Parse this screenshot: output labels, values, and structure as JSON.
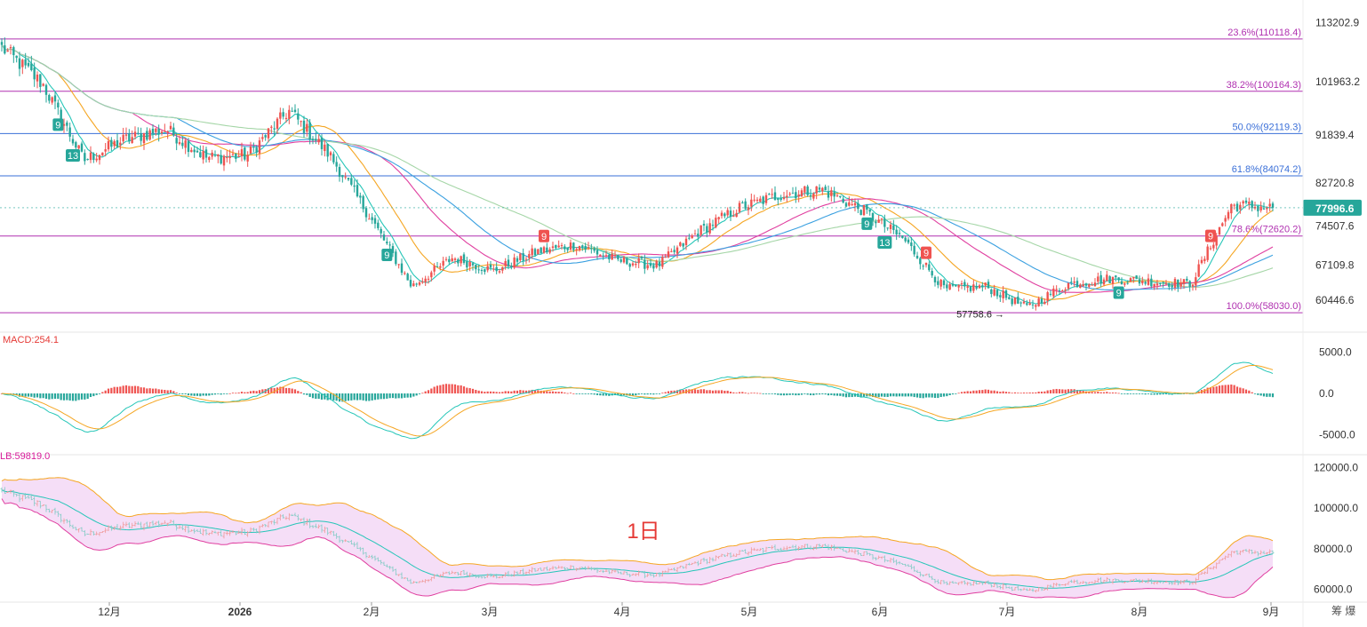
{
  "colors": {
    "up": "#ef5350",
    "down": "#26a69a",
    "fib_purple": "#b030b0",
    "fib_blue": "#3a6fd8",
    "ma_fast": "#26c6b8",
    "ma_mid": "#f5a623",
    "ma_pink": "#e040a0",
    "ma_blue": "#3aa0e0",
    "ma_green": "#a5d6a7",
    "price_tag": "#26a69a",
    "boll_fill": "#f3d6f5"
  },
  "x_axis": {
    "labels": [
      "12月",
      "2026",
      "2月",
      "3月",
      "4月",
      "5月",
      "6月",
      "7月",
      "8月",
      "9月"
    ],
    "corner": "筹 爆"
  },
  "price_axis": {
    "ticks": [
      "113202.9",
      "101963.2",
      "91839.4",
      "82720.8",
      "74507.6",
      "67109.8",
      "60446.6"
    ],
    "current_price": "77996.6"
  },
  "fib_levels": [
    {
      "label": "23.6%(110118.4)",
      "value": 110118.4,
      "color": "purple"
    },
    {
      "label": "38.2%(100164.3)",
      "value": 100164.3,
      "color": "purple"
    },
    {
      "label": "50.0%(92119.3)",
      "value": 92119.3,
      "color": "blue"
    },
    {
      "label": "61.8%(84074.2)",
      "value": 84074.2,
      "color": "blue"
    },
    {
      "label": "78.6%(72620.2)",
      "value": 72620.2,
      "color": "purple"
    },
    {
      "label": "100.0%(58030.0)",
      "value": 58030.0,
      "color": "purple"
    }
  ],
  "low_marker": "57758.6 →",
  "td_markers": [
    {
      "label": "9",
      "kind": "down",
      "date_index": 19
    },
    {
      "label": "13",
      "kind": "down",
      "date_index": 24
    },
    {
      "label": "9",
      "kind": "down",
      "date_index": 130
    },
    {
      "label": "9",
      "kind": "up",
      "date_index": 183
    },
    {
      "label": "9",
      "kind": "down",
      "date_index": 292
    },
    {
      "label": "13",
      "kind": "down",
      "date_index": 298
    },
    {
      "label": "9",
      "kind": "up",
      "date_index": 312
    },
    {
      "label": "9",
      "kind": "down",
      "date_index": 377
    },
    {
      "label": "9",
      "kind": "up",
      "date_index": 408
    }
  ],
  "macd_panel": {
    "label": "MACD:254.1",
    "ticks": [
      "5000.0",
      "0.0",
      "-5000.0"
    ]
  },
  "boll_panel": {
    "label": "LB:59819.0",
    "ticks": [
      "120000.0",
      "100000.0",
      "80000.0",
      "60000.0"
    ],
    "timeframe": "1日"
  },
  "chart_data": {
    "type": "candlestick",
    "interval": "1日",
    "x_range": [
      "11月",
      "9月"
    ],
    "anchor_closes": [
      {
        "x": "11月初",
        "close": 108500
      },
      {
        "x": "11月中",
        "close": 101500
      },
      {
        "x": "11月下",
        "close": 87000
      },
      {
        "x": "12月初",
        "close": 91000
      },
      {
        "x": "12月中",
        "close": 93000
      },
      {
        "x": "12月下",
        "close": 87500
      },
      {
        "x": "2026-01-01",
        "close": 88000
      },
      {
        "x": "1月中",
        "close": 96500
      },
      {
        "x": "1月下",
        "close": 88000
      },
      {
        "x": "2月初",
        "close": 76000
      },
      {
        "x": "2月6日",
        "close": 63000
      },
      {
        "x": "2月中",
        "close": 68500
      },
      {
        "x": "2月下",
        "close": 66000
      },
      {
        "x": "3月初",
        "close": 69500
      },
      {
        "x": "3月中",
        "close": 71000
      },
      {
        "x": "3月下",
        "close": 68000
      },
      {
        "x": "4月初",
        "close": 67000
      },
      {
        "x": "4月中",
        "close": 73500
      },
      {
        "x": "4月下",
        "close": 78000
      },
      {
        "x": "5月初",
        "close": 80500
      },
      {
        "x": "5月中",
        "close": 81500
      },
      {
        "x": "5月下",
        "close": 77500
      },
      {
        "x": "6月初",
        "close": 72000
      },
      {
        "x": "6月中",
        "close": 62500
      },
      {
        "x": "6月下",
        "close": 63000
      },
      {
        "x": "7月初",
        "close": 59000
      },
      {
        "x": "7月中",
        "close": 63500
      },
      {
        "x": "7月下",
        "close": 64500
      },
      {
        "x": "8月初",
        "close": 64000
      },
      {
        "x": "8月中",
        "close": 63500
      },
      {
        "x": "8月下",
        "close": 78500
      },
      {
        "x": "9月初",
        "close": 77996.6
      }
    ],
    "last_close": 77996.6,
    "period_low": 57758.6,
    "ylim": [
      55000,
      115000
    ],
    "moving_averages": [
      "MA fast",
      "MA mid",
      "MA pink",
      "MA blue",
      "MA green"
    ],
    "macd": {
      "value": 254.1,
      "ylim": [
        -7000,
        7000
      ]
    },
    "bollinger": {
      "lower_band": 59819.0,
      "ylim": [
        55000,
        125000
      ]
    },
    "grid": false
  }
}
